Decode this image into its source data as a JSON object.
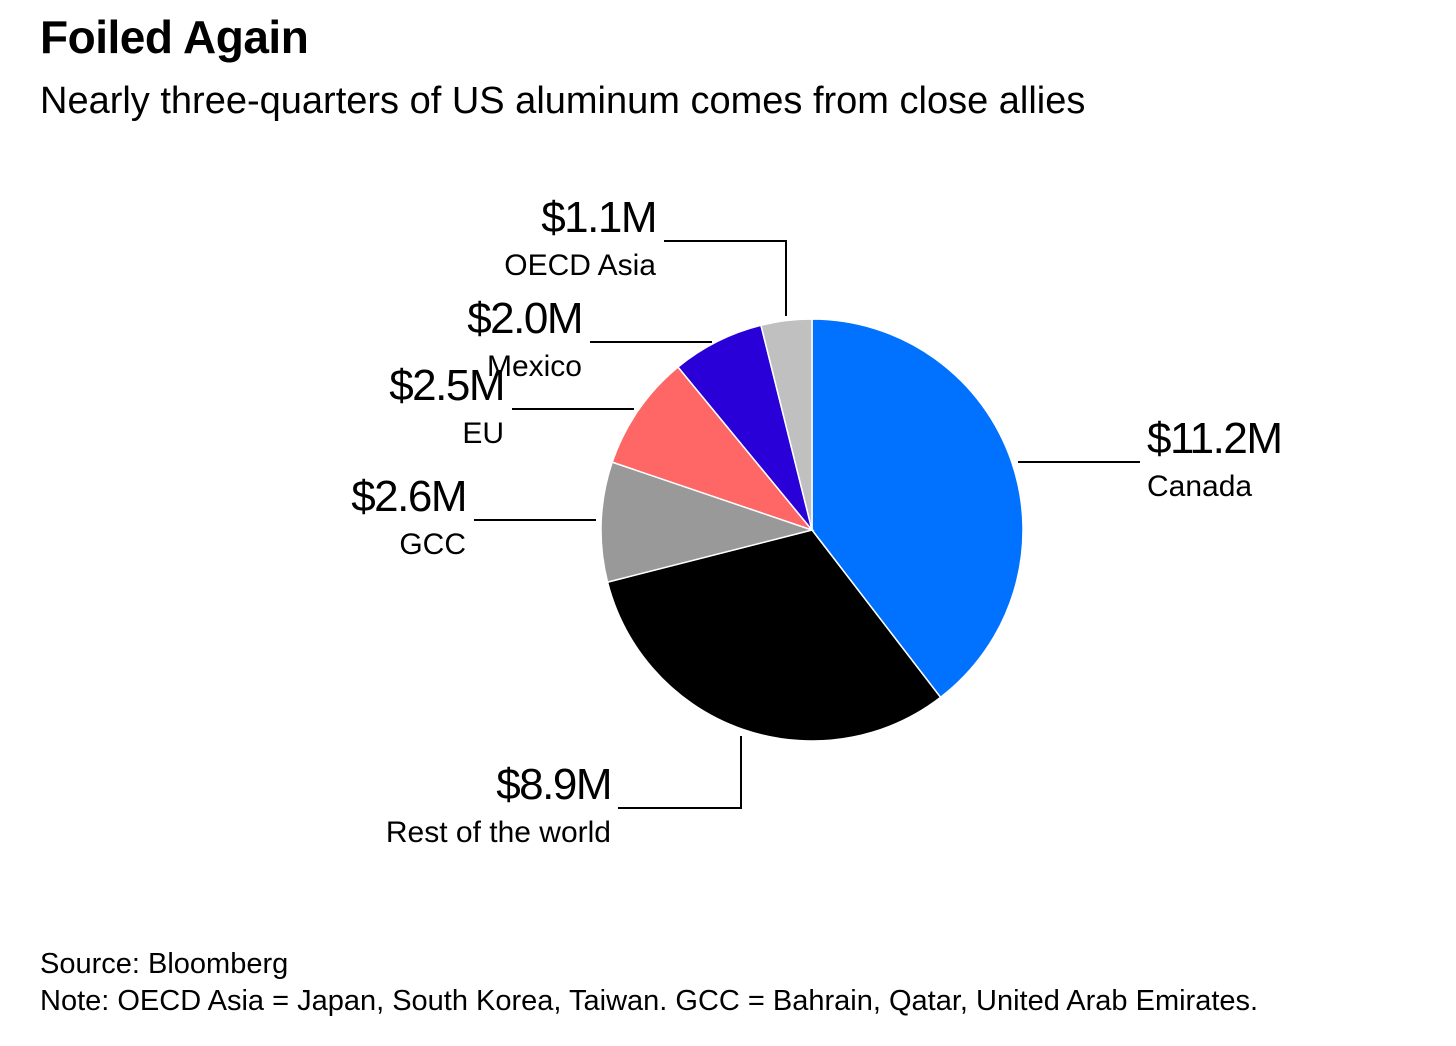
{
  "title": "Foiled Again",
  "subtitle": "Nearly three-quarters of US aluminum comes from close allies",
  "footer": {
    "source": "Source: Bloomberg",
    "note": "Note: OECD Asia = Japan, South Korea, Taiwan. GCC = Bahrain, Qatar, United Arab Emirates."
  },
  "chart_data": {
    "type": "pie",
    "title": "Foiled Again",
    "subtitle": "Nearly three-quarters of US aluminum comes from close allies",
    "slices": [
      {
        "label": "Canada",
        "value": 11.2,
        "value_label": "$11.2M",
        "color": "#0072ff"
      },
      {
        "label": "Rest of the world",
        "value": 8.9,
        "value_label": "$8.9M",
        "color": "#000000"
      },
      {
        "label": "GCC",
        "value": 2.6,
        "value_label": "$2.6M",
        "color": "#999999"
      },
      {
        "label": "EU",
        "value": 2.5,
        "value_label": "$2.5M",
        "color": "#ff6666"
      },
      {
        "label": "Mexico",
        "value": 2.0,
        "value_label": "$2.0M",
        "color": "#2a00d9"
      },
      {
        "label": "OECD Asia",
        "value": 1.1,
        "value_label": "$1.1M",
        "color": "#c0c0c0"
      }
    ],
    "start_angle": "12 o'clock",
    "direction": "clockwise",
    "legend": "none",
    "labels": "outside with leader lines"
  }
}
